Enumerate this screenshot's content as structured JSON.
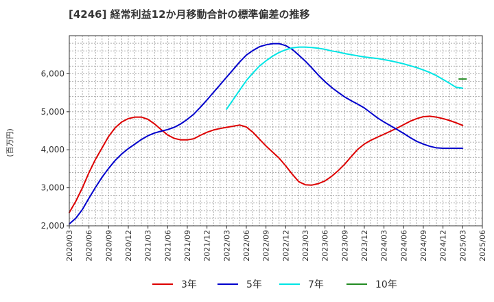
{
  "chart_data": {
    "type": "line",
    "title": "[4246]  経常利益12か月移動合計の標準偏差の推移",
    "ylabel": "(百万円)",
    "xlabel": "",
    "ylim": [
      2000,
      7000
    ],
    "yticks": [
      2000,
      3000,
      4000,
      5000,
      6000
    ],
    "ytick_labels": [
      "2,000",
      "3,000",
      "4,000",
      "5,000",
      "6,000"
    ],
    "xtick_labels": [
      "2020/03",
      "2020/06",
      "2020/09",
      "2020/12",
      "2021/03",
      "2021/06",
      "2021/09",
      "2021/12",
      "2022/03",
      "2022/06",
      "2022/09",
      "2022/12",
      "2023/03",
      "2023/06",
      "2023/09",
      "2023/12",
      "2024/03",
      "2024/06",
      "2024/09",
      "2024/12",
      "2025/03",
      "2025/06"
    ],
    "grid": true,
    "legend_position": "bottom",
    "series": [
      {
        "name": "3年",
        "color": "#dd0000",
        "x": [
          "2020/03",
          "2020/04",
          "2020/05",
          "2020/06",
          "2020/07",
          "2020/08",
          "2020/09",
          "2020/10",
          "2020/11",
          "2020/12",
          "2021/01",
          "2021/02",
          "2021/03",
          "2021/04",
          "2021/05",
          "2021/06",
          "2021/07",
          "2021/08",
          "2021/09",
          "2021/10",
          "2021/11",
          "2021/12",
          "2022/01",
          "2022/02",
          "2022/03",
          "2022/04",
          "2022/05",
          "2022/06",
          "2022/07",
          "2022/08",
          "2022/09",
          "2022/10",
          "2022/11",
          "2022/12",
          "2023/01",
          "2023/02",
          "2023/03",
          "2023/04",
          "2023/05",
          "2023/06",
          "2023/07",
          "2023/08",
          "2023/09",
          "2023/10",
          "2023/11",
          "2023/12",
          "2024/01",
          "2024/02",
          "2024/03",
          "2024/04",
          "2024/05",
          "2024/06",
          "2024/07",
          "2024/08",
          "2024/09",
          "2024/10",
          "2024/11",
          "2024/12",
          "2025/01",
          "2025/02",
          "2025/03"
        ],
        "values": [
          2350,
          2650,
          3000,
          3400,
          3750,
          4050,
          4350,
          4580,
          4730,
          4820,
          4860,
          4860,
          4800,
          4680,
          4530,
          4390,
          4300,
          4260,
          4260,
          4290,
          4380,
          4460,
          4520,
          4560,
          4590,
          4620,
          4650,
          4600,
          4460,
          4280,
          4100,
          3940,
          3780,
          3580,
          3360,
          3160,
          3080,
          3070,
          3110,
          3180,
          3300,
          3450,
          3620,
          3820,
          4010,
          4150,
          4250,
          4330,
          4410,
          4490,
          4570,
          4660,
          4750,
          4820,
          4870,
          4880,
          4860,
          4820,
          4770,
          4710,
          4640
        ],
        "values_note": ""
      },
      {
        "name": "5年",
        "color": "#0000cc",
        "x": [
          "2020/03",
          "2020/04",
          "2020/05",
          "2020/06",
          "2020/07",
          "2020/08",
          "2020/09",
          "2020/10",
          "2020/11",
          "2020/12",
          "2021/01",
          "2021/02",
          "2021/03",
          "2021/04",
          "2021/05",
          "2021/06",
          "2021/07",
          "2021/08",
          "2021/09",
          "2021/10",
          "2021/11",
          "2021/12",
          "2022/01",
          "2022/02",
          "2022/03",
          "2022/04",
          "2022/05",
          "2022/06",
          "2022/07",
          "2022/08",
          "2022/09",
          "2022/10",
          "2022/11",
          "2022/12",
          "2023/01",
          "2023/02",
          "2023/03",
          "2023/04",
          "2023/05",
          "2023/06",
          "2023/07",
          "2023/08",
          "2023/09",
          "2023/10",
          "2023/11",
          "2023/12",
          "2024/01",
          "2024/02",
          "2024/03",
          "2024/04",
          "2024/05",
          "2024/06",
          "2024/07",
          "2024/08",
          "2024/09",
          "2024/10",
          "2024/11",
          "2024/12",
          "2025/01",
          "2025/02",
          "2025/03"
        ],
        "values": [
          2050,
          2200,
          2430,
          2730,
          3010,
          3280,
          3510,
          3720,
          3890,
          4030,
          4150,
          4270,
          4370,
          4440,
          4490,
          4530,
          4590,
          4680,
          4800,
          4940,
          5120,
          5310,
          5510,
          5710,
          5910,
          6110,
          6310,
          6490,
          6610,
          6710,
          6760,
          6790,
          6790,
          6740,
          6640,
          6490,
          6330,
          6150,
          5960,
          5790,
          5640,
          5510,
          5390,
          5290,
          5200,
          5100,
          4970,
          4840,
          4730,
          4630,
          4530,
          4430,
          4320,
          4220,
          4150,
          4090,
          4050,
          4040,
          4040,
          4040,
          4040
        ],
        "values_note": ""
      },
      {
        "name": "7年",
        "color": "#00e5e5",
        "x": [
          "2022/03",
          "2022/04",
          "2022/05",
          "2022/06",
          "2022/07",
          "2022/08",
          "2022/09",
          "2022/10",
          "2022/11",
          "2022/12",
          "2023/01",
          "2023/02",
          "2023/03",
          "2023/04",
          "2023/05",
          "2023/06",
          "2023/07",
          "2023/08",
          "2023/09",
          "2023/10",
          "2023/11",
          "2023/12",
          "2024/01",
          "2024/02",
          "2024/03",
          "2024/04",
          "2024/05",
          "2024/06",
          "2024/07",
          "2024/08",
          "2024/09",
          "2024/10",
          "2024/11",
          "2024/12",
          "2025/01",
          "2025/02",
          "2025/03"
        ],
        "values": [
          5070,
          5320,
          5570,
          5820,
          6020,
          6200,
          6340,
          6460,
          6560,
          6630,
          6680,
          6700,
          6700,
          6690,
          6670,
          6640,
          6600,
          6570,
          6530,
          6500,
          6470,
          6440,
          6420,
          6400,
          6370,
          6340,
          6300,
          6260,
          6210,
          6160,
          6100,
          6030,
          5950,
          5850,
          5750,
          5640,
          5620
        ]
      },
      {
        "name": "10年",
        "color": "#228b22",
        "x": [
          "2025/03"
        ],
        "values": [
          5860
        ]
      }
    ]
  }
}
